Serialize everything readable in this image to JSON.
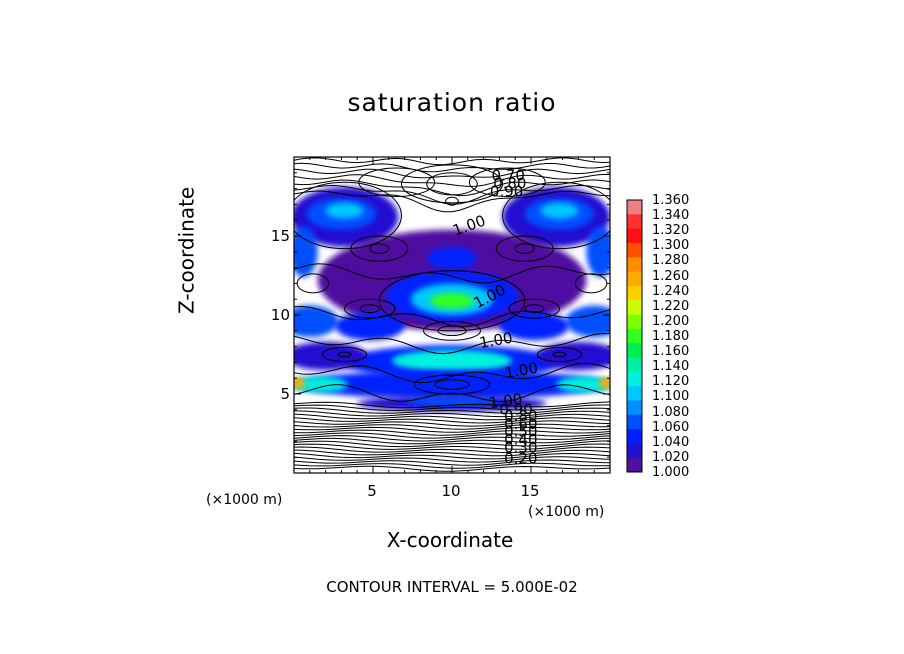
{
  "chart_data": {
    "type": "heatmap",
    "title": "saturation ratio",
    "xlabel": "X-coordinate",
    "ylabel": "Z-coordinate",
    "x_unit": "(×1000 m)",
    "xlim": [
      0,
      20
    ],
    "ylim": [
      0,
      20
    ],
    "x_ticks": [
      "5",
      "10",
      "15"
    ],
    "x_tick_values": [
      5,
      10,
      15
    ],
    "y_ticks": [
      "5",
      "10",
      "15"
    ],
    "y_tick_values": [
      5,
      10,
      15
    ],
    "contour_interval_text": "CONTOUR INTERVAL = 5.000E-02",
    "contour_labels": [
      "0.70",
      "0.80",
      "0.90",
      "1.00",
      "1.00",
      "1.00",
      "1.00",
      "1.00",
      "0.90",
      "0.80",
      "0.60",
      "0.50",
      "0.40",
      "0.30",
      "0.20"
    ],
    "colorbar": {
      "min": 1.0,
      "max": 1.36,
      "labels": [
        "1.360",
        "1.340",
        "1.320",
        "1.300",
        "1.280",
        "1.260",
        "1.240",
        "1.220",
        "1.200",
        "1.180",
        "1.160",
        "1.140",
        "1.120",
        "1.100",
        "1.080",
        "1.060",
        "1.040",
        "1.020",
        "1.000"
      ],
      "colors": [
        "#f08080",
        "#ff3030",
        "#ff1010",
        "#ff5000",
        "#ff8c00",
        "#ffaa00",
        "#ffd000",
        "#c8ff00",
        "#7cff00",
        "#30ff20",
        "#00ee50",
        "#00f0a0",
        "#00f0e0",
        "#00c8ff",
        "#0090ff",
        "#0050ff",
        "#0020ff",
        "#2010d0",
        "#5010a0"
      ]
    },
    "regions": [
      {
        "name": "upper-left-lobe",
        "x": 3.0,
        "z": 16.3,
        "peak": 1.1
      },
      {
        "name": "upper-right-lobe",
        "x": 16.6,
        "z": 16.3,
        "peak": 1.1
      },
      {
        "name": "center-lobe",
        "x": 10.0,
        "z": 11.0,
        "peak": 1.2
      },
      {
        "name": "mid-band",
        "x": 10.0,
        "z": 7.2,
        "peak": 1.16
      },
      {
        "name": "lower-band",
        "x": 10.0,
        "z": 5.6,
        "peak": 1.14
      },
      {
        "name": "left-edge",
        "x": 0.3,
        "z": 5.8,
        "peak": 1.26
      }
    ]
  }
}
